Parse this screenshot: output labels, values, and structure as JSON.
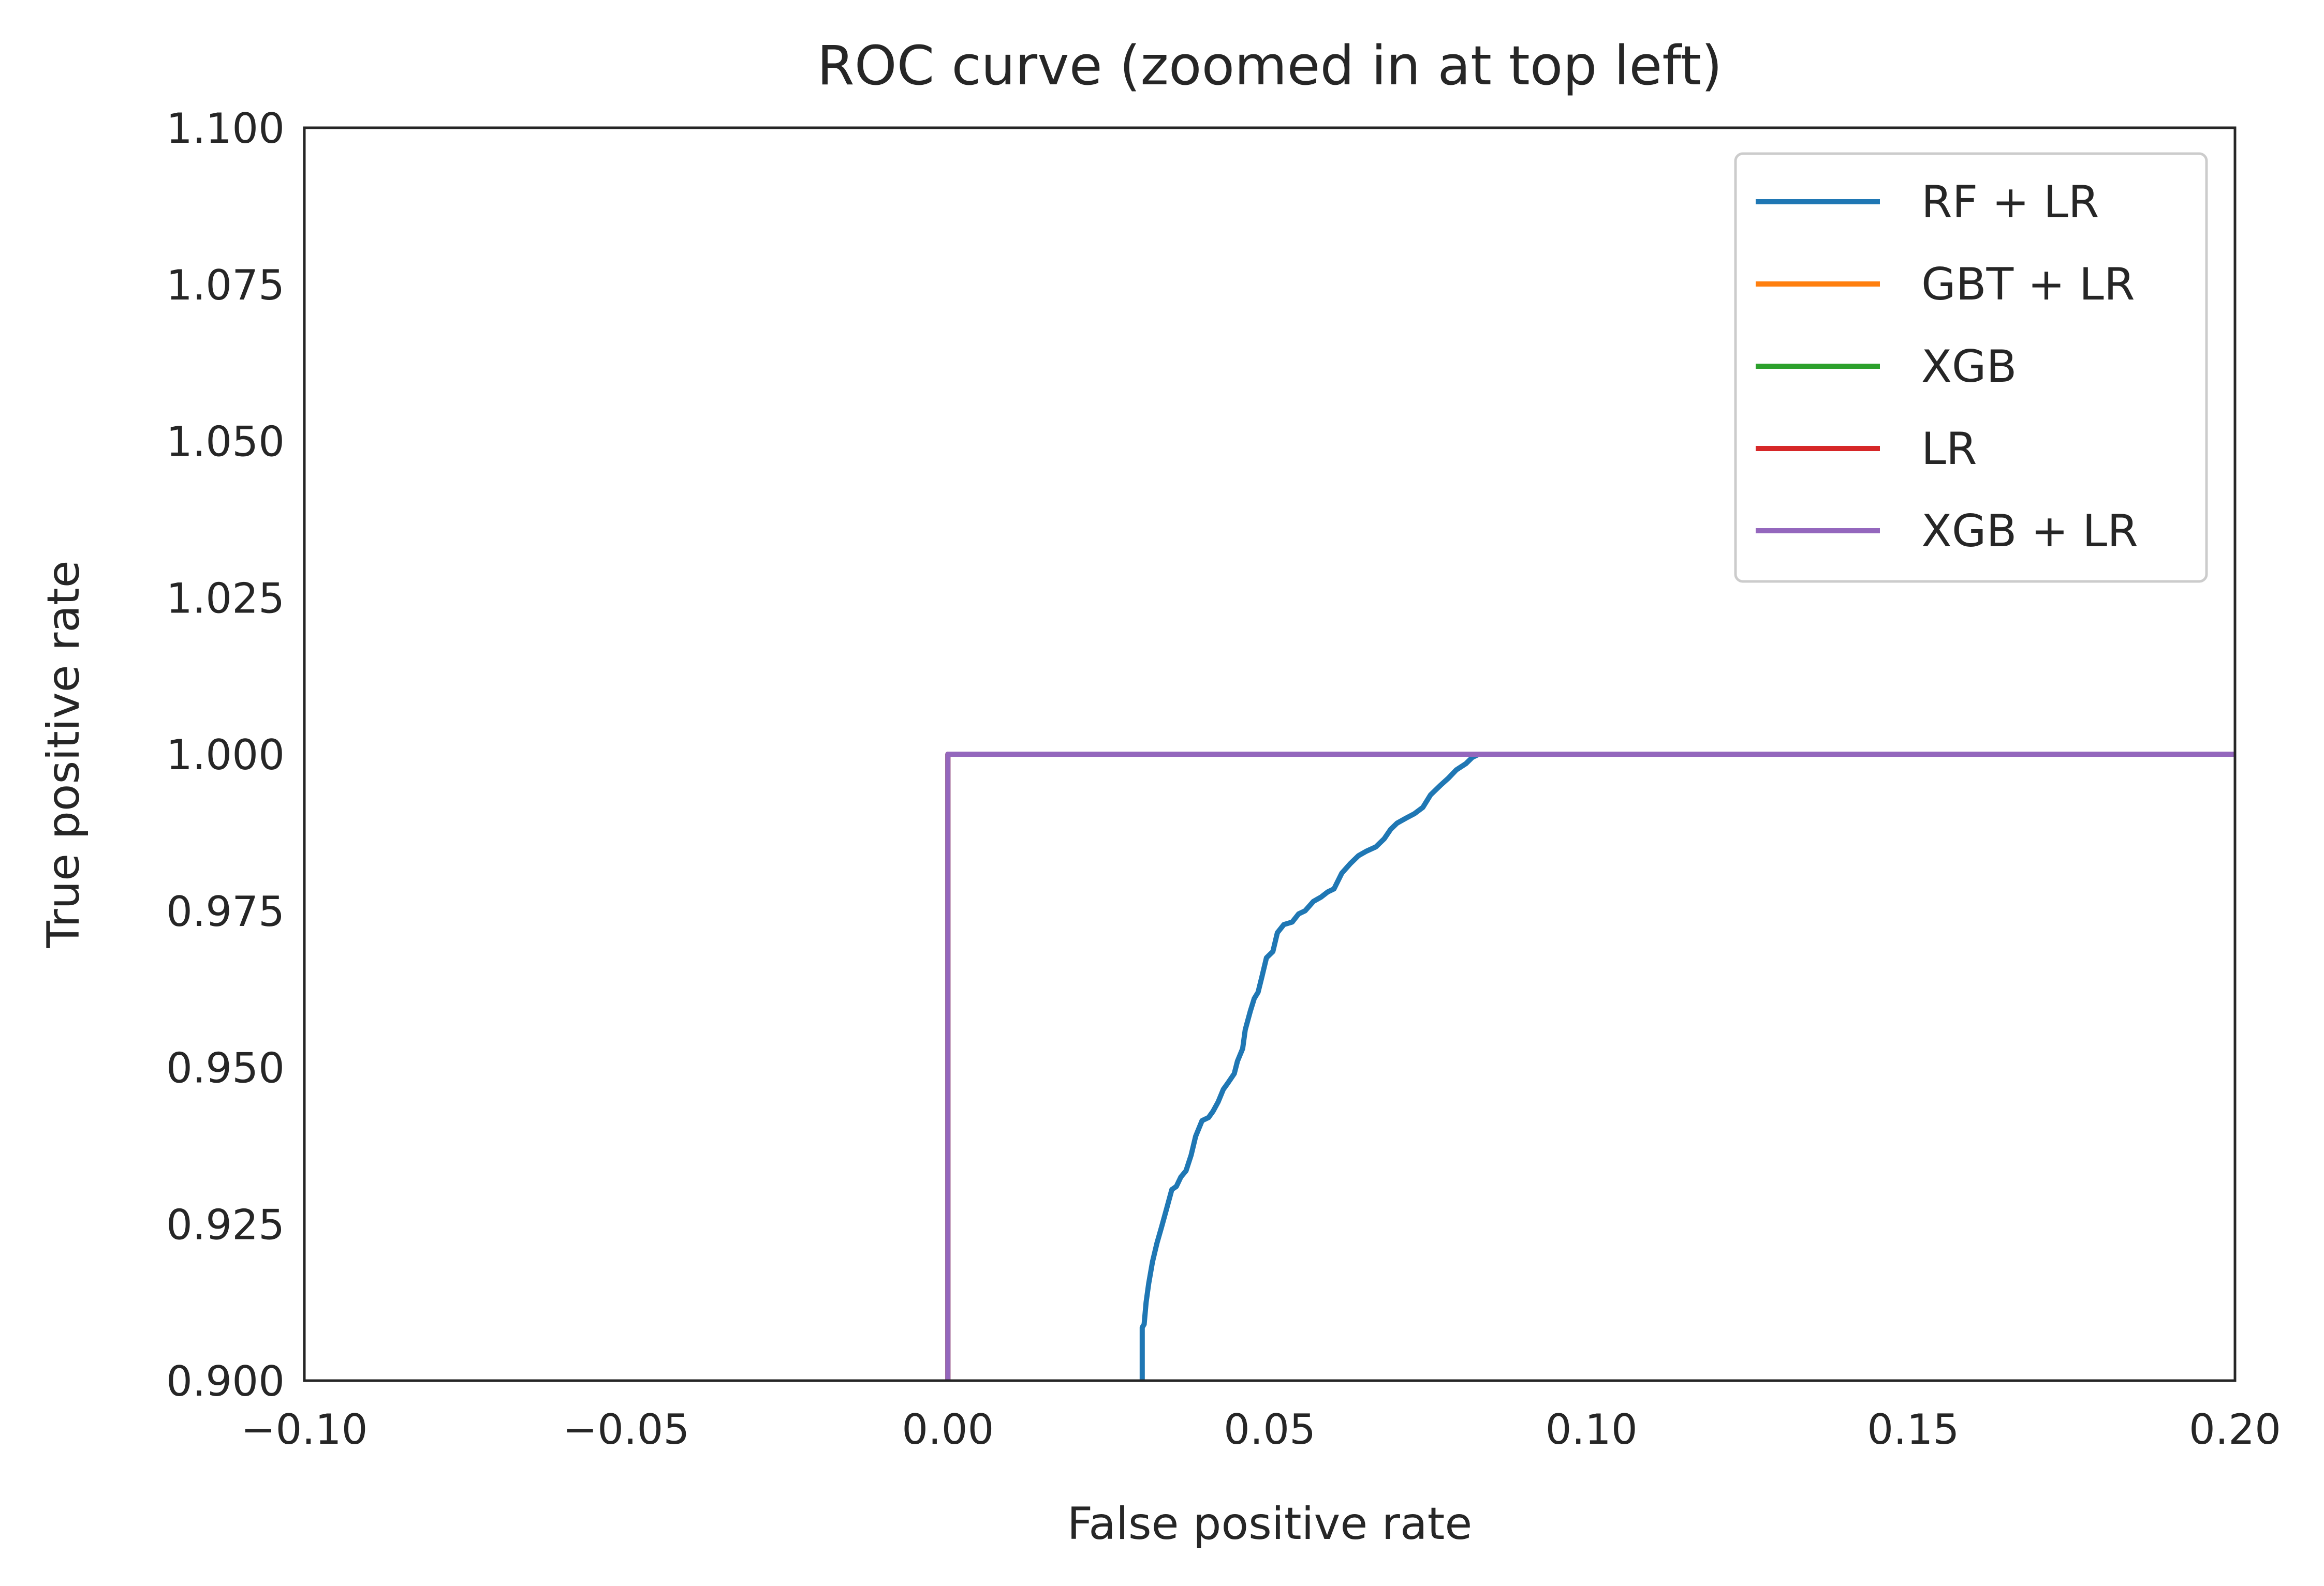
{
  "chart_data": {
    "type": "line",
    "title": "ROC curve (zoomed in at top left)",
    "xlabel": "False positive rate",
    "ylabel": "True positive rate",
    "xlim": [
      -0.1,
      0.2
    ],
    "ylim": [
      0.9,
      1.1
    ],
    "x_ticks": [
      -0.1,
      -0.05,
      0.0,
      0.05,
      0.1,
      0.15,
      0.2
    ],
    "x_tick_labels": [
      "−0.10",
      "−0.05",
      "0.00",
      "0.05",
      "0.10",
      "0.15",
      "0.20"
    ],
    "y_ticks": [
      0.9,
      0.925,
      0.95,
      0.975,
      1.0,
      1.025,
      1.05,
      1.075,
      1.1
    ],
    "y_tick_labels": [
      "0.900",
      "0.925",
      "0.950",
      "0.975",
      "1.000",
      "1.025",
      "1.050",
      "1.075",
      "1.100"
    ],
    "grid": false,
    "legend_position": "top-right",
    "series": [
      {
        "name": "RF + LR",
        "color": "#1f77b4",
        "x": [
          0.0302,
          0.0302,
          0.0305,
          0.0308,
          0.0312,
          0.0318,
          0.0325,
          0.0332,
          0.034,
          0.0348,
          0.0355,
          0.0362,
          0.037,
          0.0378,
          0.0385,
          0.0395,
          0.0405,
          0.0412,
          0.042,
          0.0428,
          0.0435,
          0.0445,
          0.045,
          0.0458,
          0.0462,
          0.047,
          0.0476,
          0.0482,
          0.0488,
          0.0495,
          0.0505,
          0.0512,
          0.0522,
          0.0535,
          0.0545,
          0.0555,
          0.0568,
          0.058,
          0.059,
          0.06,
          0.0612,
          0.0625,
          0.0638,
          0.065,
          0.0665,
          0.0678,
          0.0688,
          0.0698,
          0.0712,
          0.0725,
          0.0738,
          0.075,
          0.0765,
          0.0778,
          0.079,
          0.0805,
          0.0815,
          0.0825,
          0.0838,
          0.085,
          0.088,
          0.0905
        ],
        "y": [
          0.9,
          0.9085,
          0.909,
          0.9125,
          0.9155,
          0.919,
          0.922,
          0.9245,
          0.9275,
          0.9305,
          0.931,
          0.9325,
          0.9335,
          0.936,
          0.939,
          0.9415,
          0.942,
          0.943,
          0.9445,
          0.9465,
          0.9475,
          0.949,
          0.951,
          0.953,
          0.956,
          0.959,
          0.961,
          0.962,
          0.9645,
          0.9675,
          0.9685,
          0.9715,
          0.9728,
          0.9732,
          0.9745,
          0.975,
          0.9765,
          0.9772,
          0.978,
          0.9785,
          0.981,
          0.9825,
          0.9838,
          0.9845,
          0.9852,
          0.9865,
          0.988,
          0.989,
          0.9898,
          0.9905,
          0.9915,
          0.9935,
          0.995,
          0.9962,
          0.9975,
          0.9985,
          0.9995,
          1.0,
          1.0,
          1.0,
          1.0,
          1.0
        ]
      },
      {
        "name": "GBT + LR",
        "color": "#ff7f0e",
        "x": [
          0.0,
          0.0,
          0.2
        ],
        "y": [
          0.9,
          1.0,
          1.0
        ]
      },
      {
        "name": "XGB",
        "color": "#2ca02c",
        "x": [
          0.0,
          0.0,
          0.2
        ],
        "y": [
          0.9,
          1.0,
          1.0
        ]
      },
      {
        "name": "LR",
        "color": "#d62728",
        "x": [
          0.0,
          0.0,
          0.2
        ],
        "y": [
          0.9,
          1.0,
          1.0
        ]
      },
      {
        "name": "XGB + LR",
        "color": "#9467bd",
        "x": [
          0.0,
          0.0,
          0.2
        ],
        "y": [
          0.9,
          1.0,
          1.0
        ]
      }
    ]
  }
}
